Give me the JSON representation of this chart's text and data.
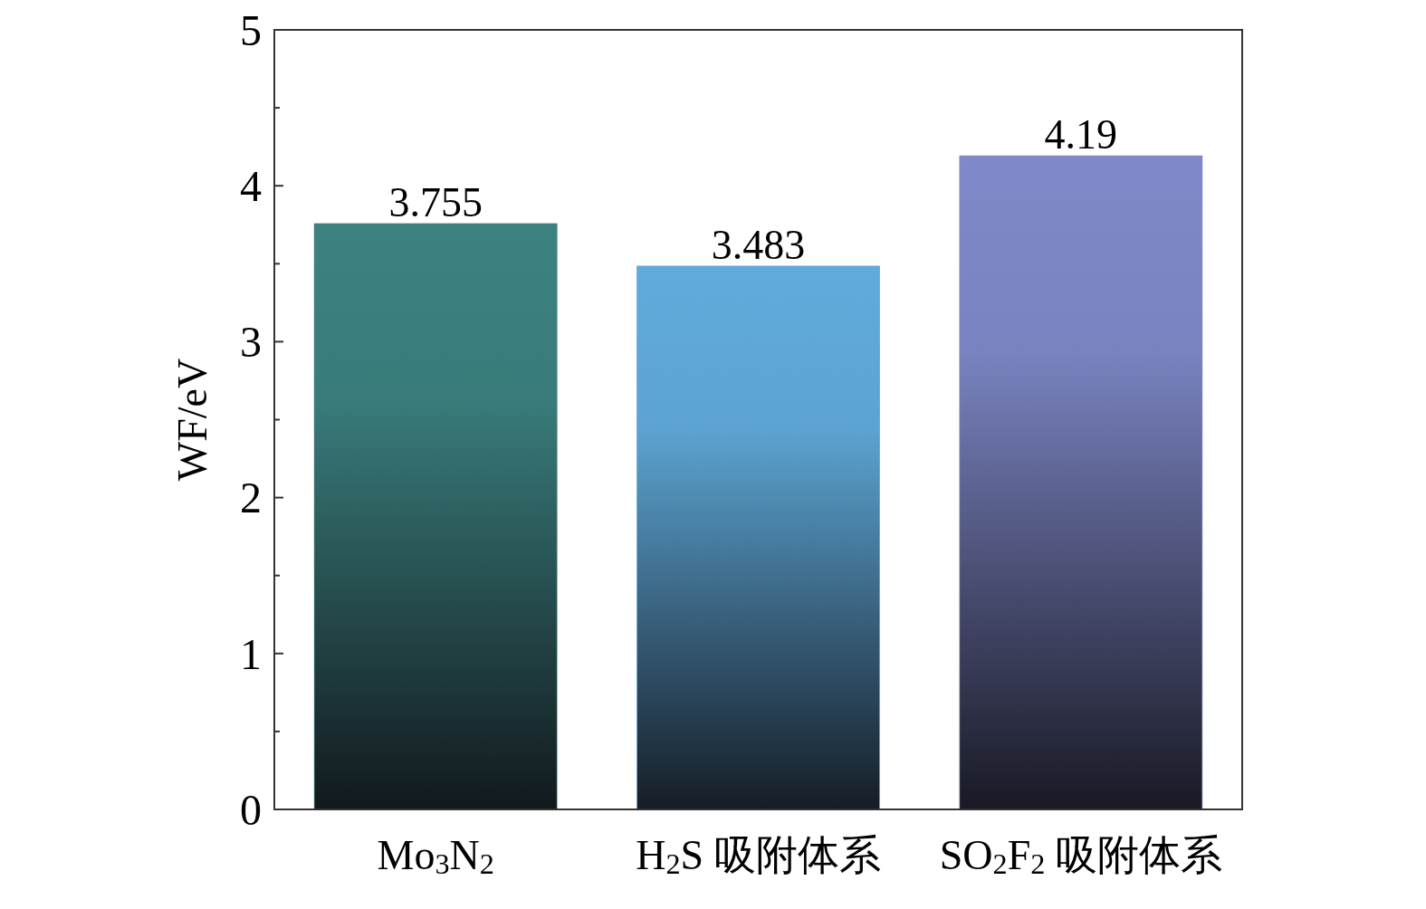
{
  "chart_data": {
    "type": "bar",
    "ylabel": "WF/eV",
    "categories": [
      "Mo$_{3}$N$_{2}$",
      "H$_{2}$S 吸附体系",
      "SO$_{2}$F$_{2}$ 吸附体系"
    ],
    "values": [
      3.755,
      3.483,
      4.19
    ],
    "colors": [
      "#3b8280",
      "#60abdc",
      "#7f89c9"
    ],
    "ylim": [
      0,
      5
    ],
    "yticks": [
      0,
      {
        "value": 0.5,
        "label": null
      },
      1,
      {
        "value": 1.5,
        "label": null
      },
      2,
      {
        "value": 2.5,
        "label": null
      },
      3,
      {
        "value": 3.5,
        "label": null
      },
      4,
      {
        "value": 4.5,
        "label": null
      },
      5
    ],
    "data_labels": true,
    "grid": false
  }
}
